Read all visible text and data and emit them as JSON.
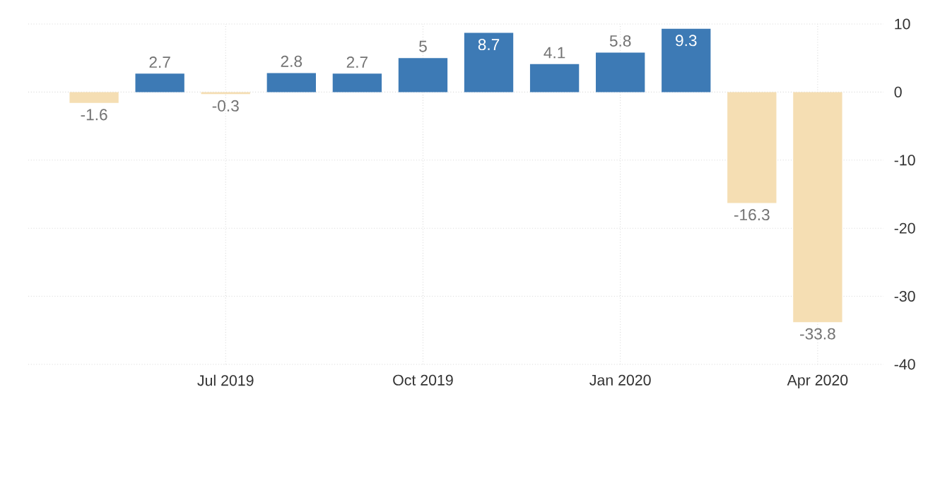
{
  "chart_data": {
    "type": "bar",
    "x": [
      "2019-05",
      "2019-06",
      "2019-07",
      "2019-08",
      "2019-09",
      "2019-10",
      "2019-11",
      "2019-12",
      "2020-01",
      "2020-02",
      "2020-03",
      "2020-04"
    ],
    "values": [
      -1.6,
      2.7,
      -0.3,
      2.8,
      2.7,
      5,
      8.7,
      4.1,
      5.8,
      9.3,
      -16.3,
      -33.8
    ],
    "value_labels": [
      "-1.6",
      "2.7",
      "-0.3",
      "2.8",
      "2.7",
      "5",
      "8.7",
      "4.1",
      "5.8",
      "9.3",
      "-16.3",
      "-33.8"
    ],
    "colors": [
      "#f5deb3",
      "#3d7ab5",
      "#f5deb3",
      "#3d7ab5",
      "#3d7ab5",
      "#3d7ab5",
      "#3d7ab5",
      "#3d7ab5",
      "#3d7ab5",
      "#3d7ab5",
      "#f5deb3",
      "#f5deb3"
    ],
    "xlim": [
      "2019-04",
      "2020-05"
    ],
    "xticks": [
      {
        "value": "2019-07",
        "label": "Jul 2019"
      },
      {
        "value": "2019-10",
        "label": "Oct 2019"
      },
      {
        "value": "2020-01",
        "label": "Jan 2020"
      },
      {
        "value": "2020-04",
        "label": "Apr 2020"
      }
    ],
    "ylim": [
      -40,
      10
    ],
    "yticks": [
      10,
      0,
      -10,
      -20,
      -30,
      -40
    ],
    "grid": true
  }
}
